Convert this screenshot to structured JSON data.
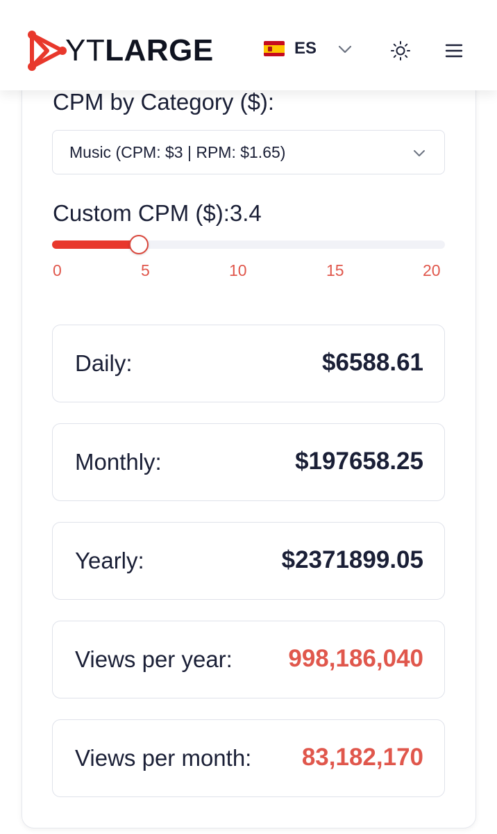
{
  "header": {
    "logo_part1": "YT",
    "logo_part2": "LARGE",
    "language_code": "ES",
    "flag_icon": "spain-flag-icon",
    "theme_icon": "sun-icon",
    "menu_icon": "hamburger-menu-icon",
    "brand_color": "#e8382c"
  },
  "calculator": {
    "category_label": "CPM by Category ($):",
    "category_selected": "Music (CPM: $3 | RPM: $1.65)",
    "custom_cpm_label": "Custom CPM ($):3.4",
    "slider": {
      "min": 0,
      "max": 20,
      "value": 3.4,
      "ticks": [
        "0",
        "5",
        "10",
        "15",
        "20"
      ]
    },
    "results": [
      {
        "label": "Daily:",
        "value": "$6588.61",
        "accent": false
      },
      {
        "label": "Monthly:",
        "value": "$197658.25",
        "accent": false
      },
      {
        "label": "Yearly:",
        "value": "$2371899.05",
        "accent": false
      },
      {
        "label": "Views per year:",
        "value": "998,186,040",
        "accent": true
      },
      {
        "label": "Views per month:",
        "value": "83,182,170",
        "accent": true
      }
    ]
  },
  "colors": {
    "accent": "#e8382c",
    "accent_text": "#e0574c",
    "text": "#1a1f36"
  }
}
